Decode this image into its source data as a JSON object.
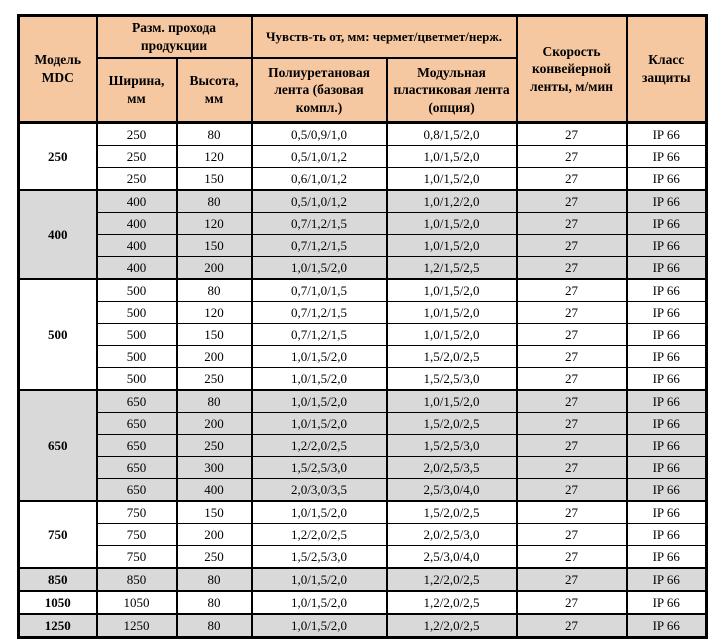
{
  "colors": {
    "header_bg": "#f6c8a2",
    "shaded_row_bg": "#d9d9d9",
    "plain_row_bg": "#ffffff",
    "border": "#000000",
    "text": "#000000"
  },
  "table": {
    "header": {
      "model": "Модель MDC",
      "pass_size": "Разм. прохода продукции",
      "width": "Ширина, мм",
      "height": "Высота, мм",
      "sensitivity": "Чувств-ть от, мм: чермет/цветмет/нерж.",
      "belt_pu": "Полиуретановая лента (базовая компл.)",
      "belt_modular": "Модульная пластиковая лента (опция)",
      "speed": "Скорость конвейерной ленты, м/мин",
      "protection": "Класс защиты"
    },
    "groups": [
      {
        "model": "250",
        "shaded": false,
        "rows": [
          [
            "250",
            "80",
            "0,5/0,9/1,0",
            "0,8/1,5/2,0",
            "27",
            "IP 66"
          ],
          [
            "250",
            "120",
            "0,5/1,0/1,2",
            "1,0/1,5/2,0",
            "27",
            "IP 66"
          ],
          [
            "250",
            "150",
            "0,6/1,0/1,2",
            "1,0/1,5/2,0",
            "27",
            "IP 66"
          ]
        ]
      },
      {
        "model": "400",
        "shaded": true,
        "rows": [
          [
            "400",
            "80",
            "0,5/1,0/1,2",
            "1,0/1,2/2,0",
            "27",
            "IP 66"
          ],
          [
            "400",
            "120",
            "0,7/1,2/1,5",
            "1,0/1,5/2,0",
            "27",
            "IP 66"
          ],
          [
            "400",
            "150",
            "0,7/1,2/1,5",
            "1,0/1,5/2,0",
            "27",
            "IP 66"
          ],
          [
            "400",
            "200",
            "1,0/1,5/2,0",
            "1,2/1,5/2,5",
            "27",
            "IP 66"
          ]
        ]
      },
      {
        "model": "500",
        "shaded": false,
        "rows": [
          [
            "500",
            "80",
            "0,7/1,0/1,5",
            "1,0/1,5/2,0",
            "27",
            "IP 66"
          ],
          [
            "500",
            "120",
            "0,7/1,2/1,5",
            "1,0/1,5/2,0",
            "27",
            "IP 66"
          ],
          [
            "500",
            "150",
            "0,7/1,2/1,5",
            "1,0/1,5/2,0",
            "27",
            "IP 66"
          ],
          [
            "500",
            "200",
            "1,0/1,5/2,0",
            "1,5/2,0/2,5",
            "27",
            "IP 66"
          ],
          [
            "500",
            "250",
            "1,0/1,5/2,0",
            "1,5/2,5/3,0",
            "27",
            "IP 66"
          ]
        ]
      },
      {
        "model": "650",
        "shaded": true,
        "rows": [
          [
            "650",
            "80",
            "1,0/1,5/2,0",
            "1,0/1,5/2,0",
            "27",
            "IP 66"
          ],
          [
            "650",
            "200",
            "1,0/1,5/2,0",
            "1,5/2,0/2,5",
            "27",
            "IP 66"
          ],
          [
            "650",
            "250",
            "1,2/2,0/2,5",
            "1,5/2,5/3,0",
            "27",
            "IP 66"
          ],
          [
            "650",
            "300",
            "1,5/2,5/3,0",
            "2,0/2,5/3,5",
            "27",
            "IP 66"
          ],
          [
            "650",
            "400",
            "2,0/3,0/3,5",
            "2,5/3,0/4,0",
            "27",
            "IP 66"
          ]
        ]
      },
      {
        "model": "750",
        "shaded": false,
        "rows": [
          [
            "750",
            "150",
            "1,0/1,5/2,0",
            "1,5/2,0/2,5",
            "27",
            "IP 66"
          ],
          [
            "750",
            "200",
            "1,2/2,0/2,5",
            "2,0/2,5/3,0",
            "27",
            "IP 66"
          ],
          [
            "750",
            "250",
            "1,5/2,5/3,0",
            "2,5/3,0/4,0",
            "27",
            "IP 66"
          ]
        ]
      },
      {
        "model": "850",
        "shaded": true,
        "rows": [
          [
            "850",
            "80",
            "1,0/1,5/2,0",
            "1,2/2,0/2,5",
            "27",
            "IP 66"
          ]
        ]
      },
      {
        "model": "1050",
        "shaded": false,
        "rows": [
          [
            "1050",
            "80",
            "1,0/1,5/2,0",
            "1,2/2,0/2,5",
            "27",
            "IP 66"
          ]
        ]
      },
      {
        "model": "1250",
        "shaded": true,
        "rows": [
          [
            "1250",
            "80",
            "1,0/1,5/2,0",
            "1,2/2,0/2,5",
            "27",
            "IP 66"
          ]
        ]
      }
    ]
  }
}
